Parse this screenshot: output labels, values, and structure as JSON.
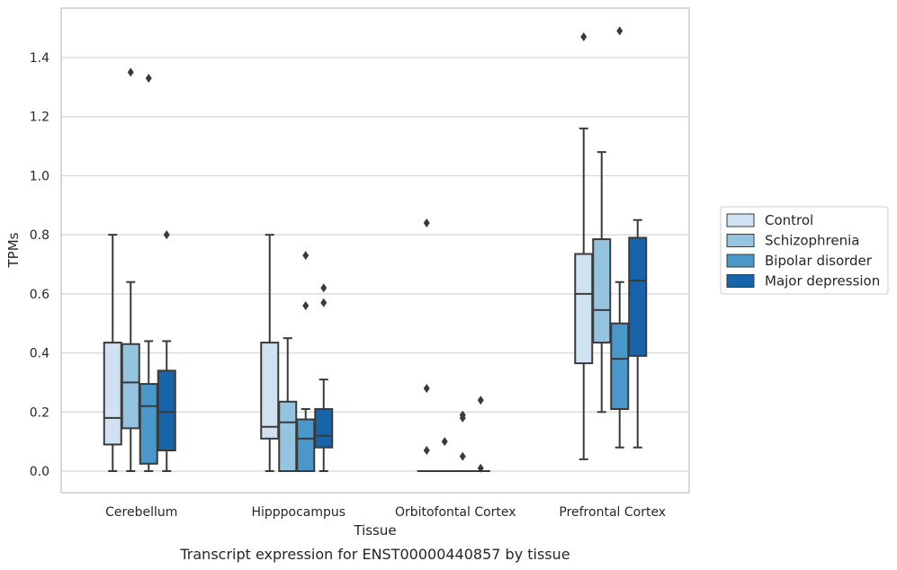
{
  "caption": "Transcript expression for ENST00000440857 by tissue",
  "chart_data": {
    "type": "box",
    "title": "",
    "xlabel": "Tissue",
    "ylabel": "TPMs",
    "ylim": [
      -0.07,
      1.57
    ],
    "yticks": [
      "0.0",
      "0.2",
      "0.4",
      "0.6",
      "0.8",
      "1.0",
      "1.2",
      "1.4"
    ],
    "ytick_values": [
      0,
      0.2,
      0.4,
      0.6,
      0.8,
      1.0,
      1.2,
      1.4
    ],
    "grid": "horizontal",
    "legend_position": "right",
    "categories": [
      "Cerebellum",
      "Hipppocampus",
      "Orbitofontal Cortex",
      "Prefrontal Cortex"
    ],
    "colors": [
      "#d0e1f2",
      "#94c4df",
      "#4a98c9",
      "#1764ab"
    ],
    "series": [
      {
        "name": "Control",
        "boxes": [
          {
            "whislo": 0.0,
            "q1": 0.09,
            "med": 0.18,
            "q3": 0.435,
            "whishi": 0.8,
            "fliers": []
          },
          {
            "whislo": 0.0,
            "q1": 0.11,
            "med": 0.15,
            "q3": 0.435,
            "whishi": 0.8,
            "fliers": []
          },
          {
            "whislo": 0.0,
            "q1": 0.0,
            "med": 0.0,
            "q3": 0.0,
            "whishi": 0.0,
            "fliers": [
              0.84,
              0.28,
              0.07
            ]
          },
          {
            "whislo": 0.04,
            "q1": 0.365,
            "med": 0.6,
            "q3": 0.735,
            "whishi": 1.16,
            "fliers": [
              1.47
            ]
          }
        ]
      },
      {
        "name": "Schizophrenia",
        "boxes": [
          {
            "whislo": 0.0,
            "q1": 0.145,
            "med": 0.3,
            "q3": 0.43,
            "whishi": 0.64,
            "fliers": [
              1.35
            ]
          },
          {
            "whislo": 0.0,
            "q1": 0.0,
            "med": 0.165,
            "q3": 0.235,
            "whishi": 0.45,
            "fliers": []
          },
          {
            "whislo": 0.0,
            "q1": 0.0,
            "med": 0.0,
            "q3": 0.0,
            "whishi": 0.0,
            "fliers": [
              0.1
            ]
          },
          {
            "whislo": 0.2,
            "q1": 0.435,
            "med": 0.545,
            "q3": 0.785,
            "whishi": 1.08,
            "fliers": []
          }
        ]
      },
      {
        "name": "Bipolar disorder",
        "boxes": [
          {
            "whislo": 0.0,
            "q1": 0.025,
            "med": 0.22,
            "q3": 0.295,
            "whishi": 0.44,
            "fliers": [
              1.33
            ]
          },
          {
            "whislo": 0.0,
            "q1": 0.0,
            "med": 0.11,
            "q3": 0.175,
            "whishi": 0.21,
            "fliers": [
              0.73,
              0.56
            ]
          },
          {
            "whislo": 0.0,
            "q1": 0.0,
            "med": 0.0,
            "q3": 0.0,
            "whishi": 0.0,
            "fliers": [
              0.19,
              0.18,
              0.05
            ]
          },
          {
            "whislo": 0.08,
            "q1": 0.21,
            "med": 0.38,
            "q3": 0.5,
            "whishi": 0.64,
            "fliers": [
              1.49
            ]
          }
        ]
      },
      {
        "name": "Major depression",
        "boxes": [
          {
            "whislo": 0.0,
            "q1": 0.07,
            "med": 0.2,
            "q3": 0.34,
            "whishi": 0.44,
            "fliers": [
              0.8
            ]
          },
          {
            "whislo": 0.0,
            "q1": 0.08,
            "med": 0.12,
            "q3": 0.21,
            "whishi": 0.31,
            "fliers": [
              0.62,
              0.57
            ]
          },
          {
            "whislo": 0.0,
            "q1": 0.0,
            "med": 0.0,
            "q3": 0.0,
            "whishi": 0.0,
            "fliers": [
              0.24,
              0.01
            ]
          },
          {
            "whislo": 0.08,
            "q1": 0.39,
            "med": 0.645,
            "q3": 0.79,
            "whishi": 0.85,
            "fliers": []
          }
        ]
      }
    ]
  }
}
